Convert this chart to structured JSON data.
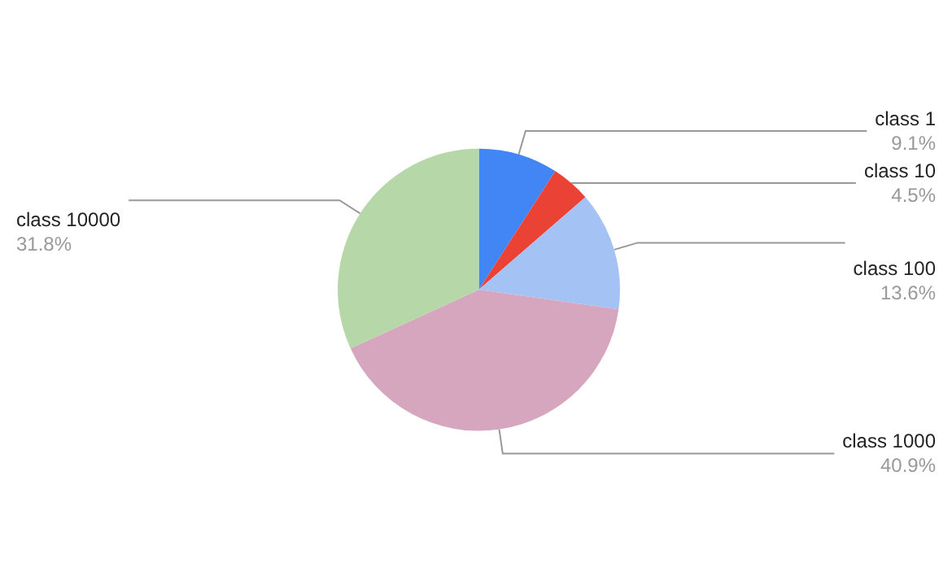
{
  "chart_data": {
    "type": "pie",
    "categories": [
      "class 1",
      "class 10",
      "class 100",
      "class 1000",
      "class 10000"
    ],
    "values": [
      9.1,
      4.5,
      13.6,
      40.9,
      31.8
    ],
    "value_labels": [
      "9.1%",
      "4.5%",
      "13.6%",
      "40.9%",
      "31.8%"
    ],
    "colors": [
      "#4285f4",
      "#ea4335",
      "#a4c2f4",
      "#d5a6bd",
      "#b6d7a8"
    ],
    "legend": false
  }
}
